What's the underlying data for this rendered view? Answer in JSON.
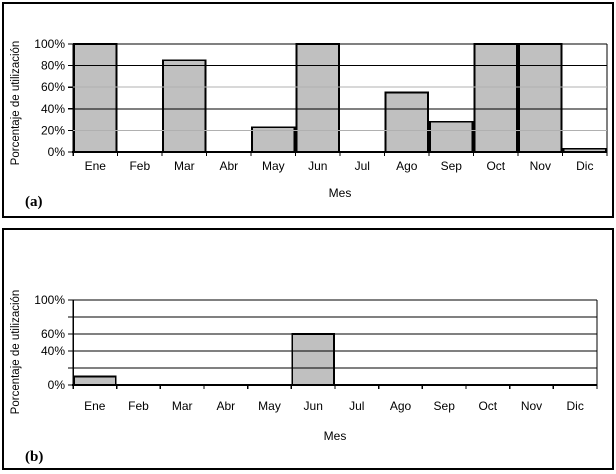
{
  "figure": {
    "panels": [
      {
        "label": "(a)"
      },
      {
        "label": "(b)"
      }
    ]
  },
  "chart_data": [
    {
      "type": "bar",
      "panel_label": "(a)",
      "title": "",
      "xlabel": "Mes",
      "ylabel": "Porcentaje de utilización",
      "categories": [
        "Ene",
        "Feb",
        "Mar",
        "Abr",
        "May",
        "Jun",
        "Jul",
        "Ago",
        "Sep",
        "Oct",
        "Nov",
        "Dic"
      ],
      "values": [
        100,
        0,
        85,
        0,
        23,
        100,
        0,
        55,
        28,
        100,
        100,
        3
      ],
      "ylim": [
        0,
        100
      ],
      "ytick_step": 20,
      "ytick_labels": [
        "0%",
        "20%",
        "40%",
        "60%",
        "80%",
        "100%"
      ],
      "grid": true,
      "legend": false,
      "bar_fill": "#c0c0c0",
      "bar_border": "#000000"
    },
    {
      "type": "bar",
      "panel_label": "(b)",
      "title": "",
      "xlabel": "Mes",
      "ylabel": "Porcentaje de utilización",
      "categories": [
        "Ene",
        "Feb",
        "Mar",
        "Abr",
        "May",
        "Jun",
        "Jul",
        "Ago",
        "Sep",
        "Oct",
        "Nov",
        "Dic"
      ],
      "values": [
        10,
        0,
        0,
        0,
        0,
        60,
        0,
        0,
        0,
        0,
        0,
        0
      ],
      "ylim": [
        0,
        100
      ],
      "ytick_step": 20,
      "ytick_labels": [
        "0%",
        "",
        "40%",
        "60%",
        "",
        "100%"
      ],
      "grid": true,
      "legend": false,
      "bar_fill": "#c0c0c0",
      "bar_border": "#000000"
    }
  ]
}
